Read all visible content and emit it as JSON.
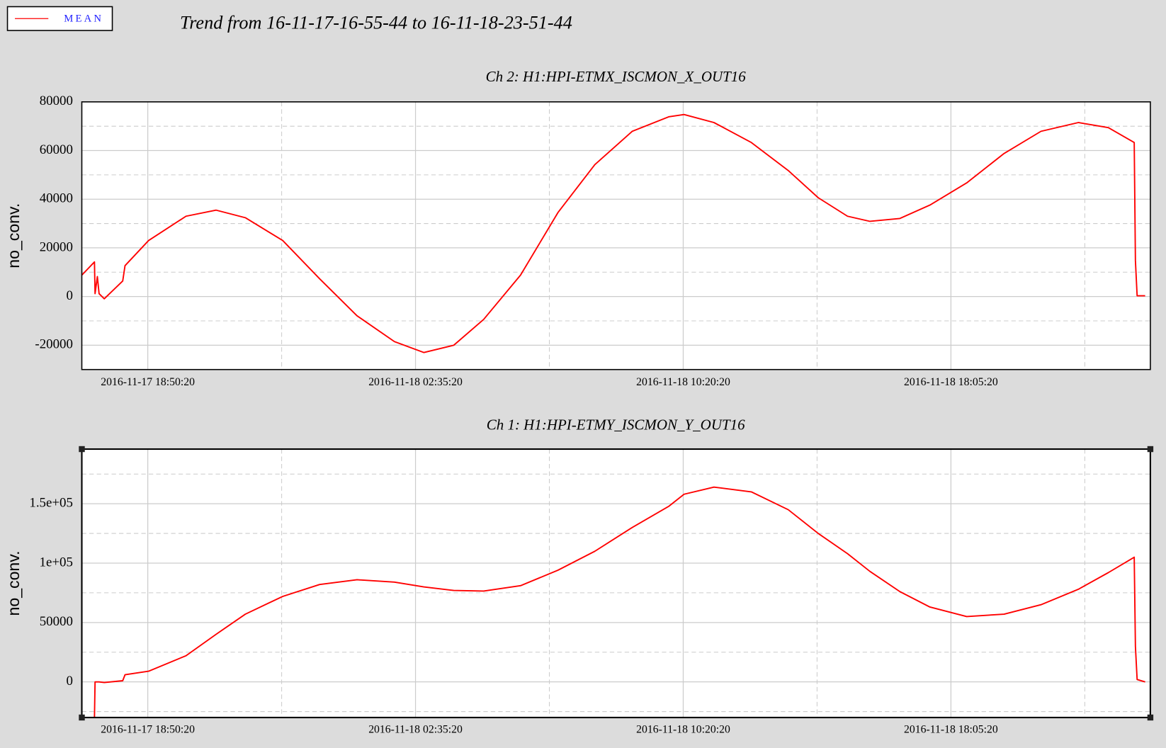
{
  "title": "Trend from 16-11-17-16-55-44 to 16-11-18-23-51-44",
  "chart_data": [
    {
      "type": "line",
      "title": "Ch 2: H1:HPI-ETMX_ISCMON_X_OUT16",
      "ylabel": "no_conv.",
      "x": [
        "2016-11-17 16:55:44",
        "2016-11-17 17:17:44",
        "2016-11-17 17:18:44",
        "2016-11-17 17:22:44",
        "2016-11-17 17:25:44",
        "2016-11-17 17:34:44",
        "2016-11-17 18:06:44",
        "2016-11-17 18:10:44",
        "2016-11-17 18:51:44",
        "2016-11-17 19:56:44",
        "2016-11-17 20:48:44",
        "2016-11-17 21:39:44",
        "2016-11-17 22:44:44",
        "2016-11-17 23:48:44",
        "2016-11-18 00:53:44",
        "2016-11-18 01:58:44",
        "2016-11-18 02:49:44",
        "2016-11-18 03:41:44",
        "2016-11-18 04:33:44",
        "2016-11-18 05:37:44",
        "2016-11-18 06:42:44",
        "2016-11-18 07:46:44",
        "2016-11-18 08:51:44",
        "2016-11-18 09:55:44",
        "2016-11-18 10:21:44",
        "2016-11-18 11:13:44",
        "2016-11-18 12:18:44",
        "2016-11-18 13:22:44",
        "2016-11-18 14:14:44",
        "2016-11-18 15:05:44",
        "2016-11-18 15:44:44",
        "2016-11-18 16:36:44",
        "2016-11-18 17:28:44",
        "2016-11-18 18:32:44",
        "2016-11-18 19:37:44",
        "2016-11-18 20:41:44",
        "2016-11-18 21:46:44",
        "2016-11-18 22:38:44",
        "2016-11-18 23:23:44",
        "2016-11-18 23:25:44",
        "2016-11-18 23:28:44",
        "2016-11-18 23:42:44"
      ],
      "series": [
        {
          "name": "MEAN",
          "color": "#ff0000",
          "values": [
            8800,
            14200,
            1200,
            8200,
            1200,
            -900,
            6400,
            12700,
            23000,
            33000,
            35500,
            32400,
            23000,
            7300,
            -7900,
            -18500,
            -23000,
            -20000,
            -9400,
            8800,
            34500,
            54200,
            67900,
            73900,
            74800,
            71500,
            63300,
            51800,
            40600,
            33000,
            30900,
            32100,
            37600,
            46700,
            58800,
            67900,
            71500,
            69400,
            63300,
            14800,
            300,
            300
          ]
        }
      ],
      "xlim": [
        "2016-11-17 16:55:44",
        "2016-11-18 23:51:44"
      ],
      "xticks": [
        "2016-11-17 18:50:20",
        "2016-11-18 02:35:20",
        "2016-11-18 10:20:20",
        "2016-11-18 18:05:20"
      ],
      "ylim": [
        -30000,
        80000
      ],
      "yticks": [
        -20000,
        0,
        20000,
        40000,
        60000,
        80000
      ],
      "grid": true
    },
    {
      "type": "line",
      "title": "Ch 1: H1:HPI-ETMY_ISCMON_Y_OUT16",
      "ylabel": "no_conv.",
      "x": [
        "2016-11-17 16:55:44",
        "2016-11-17 17:17:44",
        "2016-11-17 17:18:44",
        "2016-11-17 17:22:44",
        "2016-11-17 17:25:44",
        "2016-11-17 17:34:44",
        "2016-11-17 18:06:44",
        "2016-11-17 18:10:44",
        "2016-11-17 18:51:44",
        "2016-11-17 19:56:44",
        "2016-11-17 20:48:44",
        "2016-11-17 21:39:44",
        "2016-11-17 22:44:44",
        "2016-11-17 23:48:44",
        "2016-11-18 00:53:44",
        "2016-11-18 01:58:44",
        "2016-11-18 02:49:44",
        "2016-11-18 03:41:44",
        "2016-11-18 04:33:44",
        "2016-11-18 05:37:44",
        "2016-11-18 06:42:44",
        "2016-11-18 07:46:44",
        "2016-11-18 08:51:44",
        "2016-11-18 09:55:44",
        "2016-11-18 10:21:44",
        "2016-11-18 11:13:44",
        "2016-11-18 12:18:44",
        "2016-11-18 13:22:44",
        "2016-11-18 14:14:44",
        "2016-11-18 15:05:44",
        "2016-11-18 15:44:44",
        "2016-11-18 16:36:44",
        "2016-11-18 17:28:44",
        "2016-11-18 18:32:44",
        "2016-11-18 19:37:44",
        "2016-11-18 20:41:44",
        "2016-11-18 21:46:44",
        "2016-11-18 22:38:44",
        "2016-11-18 23:23:44",
        "2016-11-18 23:25:44",
        "2016-11-18 23:28:44",
        "2016-11-18 23:42:44"
      ],
      "series": [
        {
          "color": "#ff0000",
          "values": [
            null,
            -30000,
            0,
            0,
            0,
            -500,
            1000,
            6000,
            9000,
            22000,
            40000,
            57000,
            72000,
            82000,
            86000,
            84000,
            80000,
            77000,
            76500,
            81000,
            94000,
            110000,
            130000,
            148000,
            158000,
            164000,
            160000,
            145000,
            125000,
            108000,
            93000,
            76000,
            63000,
            55000,
            57000,
            65000,
            78000,
            92000,
            105000,
            30000,
            2000,
            0
          ]
        }
      ],
      "xlim": [
        "2016-11-17 16:55:44",
        "2016-11-18 23:51:44"
      ],
      "xticks": [
        "2016-11-17 18:50:20",
        "2016-11-18 02:35:20",
        "2016-11-18 10:20:20",
        "2016-11-18 18:05:20"
      ],
      "ylim": [
        -30000,
        196000
      ],
      "yticks": [
        0,
        50000,
        {
          "value": 100000,
          "label": "1e+05"
        },
        {
          "value": 150000,
          "label": "1.5e+05"
        }
      ],
      "grid": true
    }
  ]
}
